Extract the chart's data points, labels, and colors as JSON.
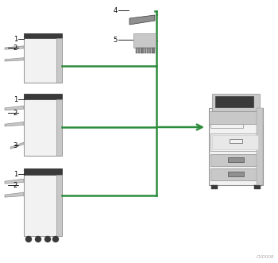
{
  "bg_color": "#ffffff",
  "green_color": "#2d8c3c",
  "dark_gray": "#3a3a3a",
  "mid_gray": "#909090",
  "light_gray": "#c8c8c8",
  "very_light_gray": "#f2f2f2",
  "watermark": "CVD008",
  "figw": 3.5,
  "figh": 3.31,
  "dpi": 100
}
